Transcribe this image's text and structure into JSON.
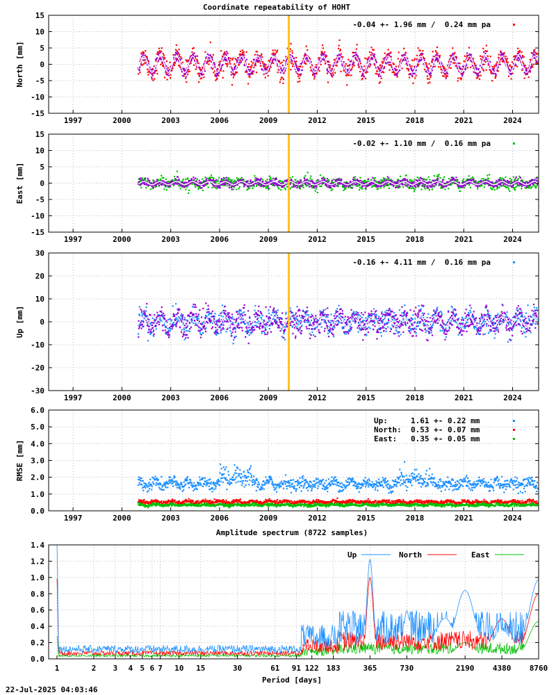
{
  "title": "Coordinate repeatability of HOHT",
  "footer_timestamp": "22-Jul-2025 04:03:46",
  "colors": {
    "north": "#ff0000",
    "east": "#00c000",
    "up": "#1e90ff",
    "model": "#9400d3",
    "event_line": "#ffc020"
  },
  "chart_data": [
    {
      "type": "scatter",
      "ylabel": "North [mm]",
      "ylim": [
        -15,
        15
      ],
      "yticks": [
        -15,
        -10,
        -5,
        0,
        5,
        10,
        15
      ],
      "xlim": [
        1995.5,
        2025.6
      ],
      "xticks": [
        1997,
        2000,
        2003,
        2006,
        2009,
        2012,
        2015,
        2018,
        2021,
        2024
      ],
      "grid": true,
      "data_start": 2001.0,
      "data_end": 2025.55,
      "event_year": 2010.25,
      "stat_text": "-0.04 +- 1.96 mm /  0.24 mm pa",
      "series": [
        {
          "name": "North",
          "color_key": "north",
          "scatter_sd": 2.0,
          "seasonal_amp": 2.5
        },
        {
          "color_key": "model",
          "scatter_sd": 1.2,
          "seasonal_amp": 2.5
        }
      ]
    },
    {
      "type": "scatter",
      "ylabel": "East [mm]",
      "ylim": [
        -15,
        15
      ],
      "yticks": [
        -15,
        -10,
        -5,
        0,
        5,
        10,
        15
      ],
      "xlim": [
        1995.5,
        2025.6
      ],
      "xticks": [
        1997,
        2000,
        2003,
        2006,
        2009,
        2012,
        2015,
        2018,
        2021,
        2024
      ],
      "grid": true,
      "data_start": 2001.0,
      "data_end": 2025.55,
      "event_year": 2010.25,
      "stat_text": "-0.02 +- 1.10 mm /  0.16 mm pa",
      "series": [
        {
          "name": "East",
          "color_key": "east",
          "scatter_sd": 1.1,
          "seasonal_amp": 0.5
        },
        {
          "color_key": "model",
          "scatter_sd": 0.9,
          "seasonal_amp": 0.5
        }
      ]
    },
    {
      "type": "scatter",
      "ylabel": "Up [mm]",
      "ylim": [
        -30,
        30
      ],
      "yticks": [
        -30,
        -20,
        -10,
        0,
        10,
        20,
        30
      ],
      "xlim": [
        1995.5,
        2025.6
      ],
      "xticks": [
        1997,
        2000,
        2003,
        2006,
        2009,
        2012,
        2015,
        2018,
        2021,
        2024
      ],
      "grid": true,
      "data_start": 2001.0,
      "data_end": 2025.55,
      "event_year": 2010.25,
      "stat_text": "-0.16 +- 4.11 mm /  0.16 mm pa",
      "series": [
        {
          "name": "Up",
          "color_key": "up",
          "scatter_sd": 3.0,
          "seasonal_amp": 2.2
        },
        {
          "color_key": "model",
          "scatter_sd": 4.5,
          "seasonal_amp": 2.2
        }
      ]
    },
    {
      "type": "scatter",
      "ylabel": "RMSE [mm]",
      "ylim": [
        0.0,
        6.0
      ],
      "yticks": [
        "0.0",
        "1.0",
        "2.0",
        "3.0",
        "4.0",
        "5.0",
        "6.0"
      ],
      "xlim": [
        1995.5,
        2025.6
      ],
      "xticks": [
        1997,
        2000,
        2003,
        2006,
        2009,
        2012,
        2015,
        2018,
        2021,
        2024
      ],
      "grid": true,
      "data_start": 2001.0,
      "data_end": 2025.55,
      "legend": [
        {
          "label": "Up:     1.61 +- 0.22 mm",
          "color_key": "up"
        },
        {
          "label": "North:  0.53 +- 0.07 mm",
          "color_key": "north"
        },
        {
          "label": "East:   0.35 +- 0.05 mm",
          "color_key": "east"
        }
      ],
      "series": [
        {
          "name": "Up",
          "color_key": "up",
          "mean": 1.61,
          "sd": 0.22
        },
        {
          "name": "North",
          "color_key": "north",
          "mean": 0.53,
          "sd": 0.07
        },
        {
          "name": "East",
          "color_key": "east",
          "mean": 0.35,
          "sd": 0.05
        }
      ]
    },
    {
      "type": "line",
      "title": "Amplitude spectrum (8722 samples)",
      "xlabel": "Period [days]",
      "x_scale": "log",
      "xlim": [
        1,
        8760
      ],
      "ylim": [
        0.0,
        1.4
      ],
      "yticks": [
        "0.0",
        "0.2",
        "0.4",
        "0.6",
        "0.8",
        "1.0",
        "1.2",
        "1.4"
      ],
      "xticks": [
        1,
        2,
        3,
        4,
        5,
        6,
        7,
        10,
        15,
        30,
        61,
        91,
        122,
        183,
        365,
        730,
        2190,
        4380,
        8760
      ],
      "grid": true,
      "legend": [
        "Up",
        "North",
        "East"
      ],
      "series": [
        {
          "name": "Up",
          "color_key": "up",
          "peaks": [
            [
              1.0,
              1.4
            ],
            [
              365,
              1.22
            ],
            [
              730,
              0.59
            ],
            [
              1000,
              0.22
            ],
            [
              1500,
              0.5
            ],
            [
              2190,
              0.84
            ],
            [
              3000,
              0.29
            ],
            [
              4380,
              0.35
            ],
            [
              8760,
              0.97
            ]
          ]
        },
        {
          "name": "North",
          "color_key": "north",
          "peaks": [
            [
              1.0,
              0.98
            ],
            [
              365,
              1.0
            ],
            [
              730,
              0.16
            ],
            [
              1100,
              0.12
            ],
            [
              2190,
              0.15
            ],
            [
              3000,
              0.13
            ],
            [
              4380,
              0.49
            ],
            [
              8760,
              0.8
            ]
          ]
        },
        {
          "name": "East",
          "color_key": "east",
          "peaks": [
            [
              1.0,
              0.28
            ],
            [
              365,
              0.12
            ],
            [
              730,
              0.08
            ],
            [
              2190,
              0.2
            ],
            [
              4380,
              0.06
            ],
            [
              8760,
              0.46
            ]
          ]
        }
      ]
    }
  ]
}
